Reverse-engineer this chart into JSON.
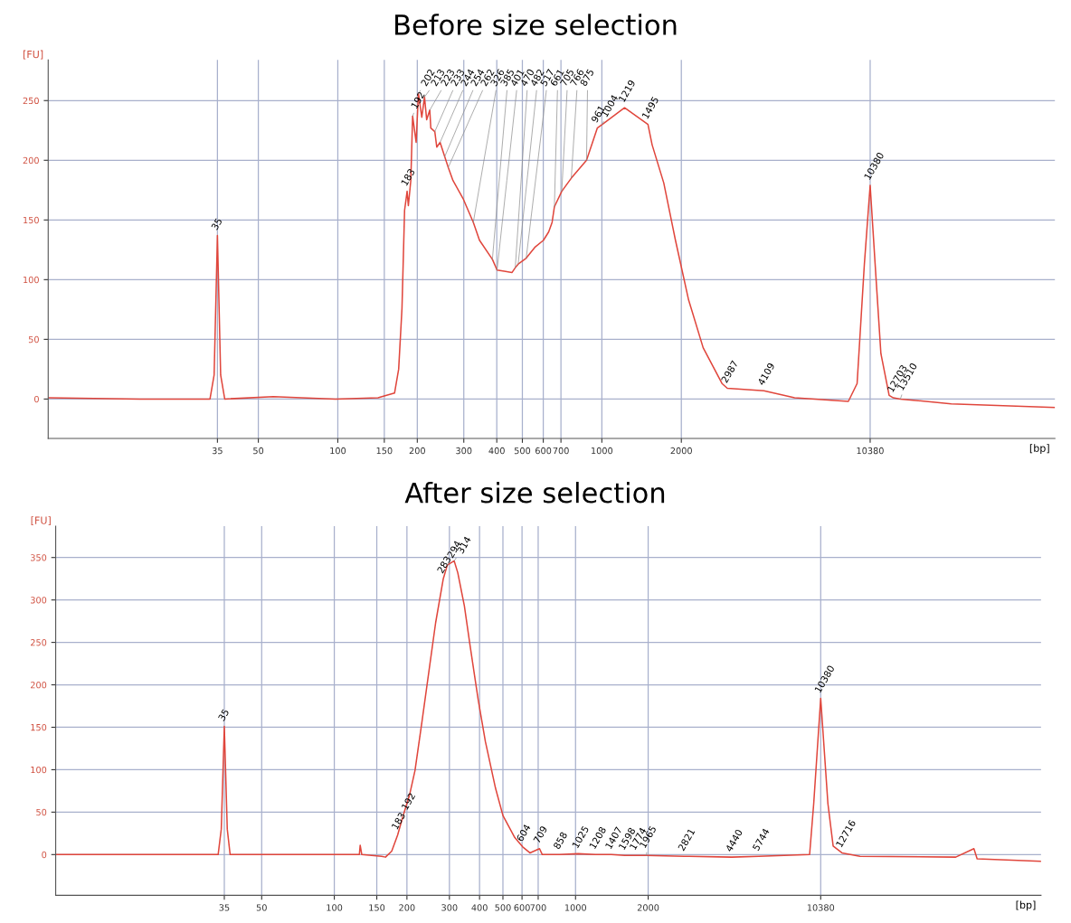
{
  "chart_data": [
    {
      "type": "line",
      "title": "Before size selection",
      "xlabel": "[bp]",
      "ylabel": "[FU]",
      "log": "x",
      "grid": true,
      "marker": "none",
      "line_style": "solid",
      "xlim": [
        8,
        52000
      ],
      "xticks": [
        35,
        50,
        100,
        150,
        200,
        300,
        400,
        500,
        600,
        700,
        1000,
        2000,
        10380
      ],
      "ylim": [
        -33,
        284
      ],
      "yticks": [
        0,
        50,
        100,
        150,
        200,
        250
      ],
      "series": [
        {
          "color": "#e0463c",
          "x": [
            8,
            17.8,
            32.8,
            34,
            35,
            36,
            37.3,
            57,
            98,
            142,
            152,
            164,
            170,
            175,
            179,
            183,
            185,
            189,
            192,
            198,
            202,
            208,
            213,
            217,
            223,
            225,
            233,
            237,
            244,
            254,
            262,
            273,
            298,
            326,
            344,
            385,
            401,
            427,
            457,
            470,
            482,
            517,
            557,
            601,
            629,
            648,
            661,
            705,
            766,
            875,
            961,
            1004,
            1219,
            1495,
            1550,
            1716,
            1900,
            2131,
            2419,
            2851,
            2987,
            4109,
            5371,
            8583,
            9263,
            9868,
            10380,
            10840,
            11400,
            12250,
            12703,
            13510,
            21050,
            51800
          ],
          "values": [
            1,
            0,
            0,
            20,
            137,
            20,
            0,
            2,
            0,
            1,
            3,
            5,
            25,
            76,
            158,
            174,
            162,
            183,
            237,
            215,
            256,
            236,
            253,
            234,
            242,
            227,
            224,
            211,
            215,
            203,
            194,
            183,
            168,
            148,
            133,
            117,
            108,
            107,
            106,
            110,
            113,
            118,
            127,
            133,
            140,
            148,
            161,
            174,
            185,
            200,
            227,
            230,
            244,
            230,
            213,
            181,
            133,
            83,
            43,
            13,
            9,
            7,
            1,
            -2,
            13,
            113,
            179,
            113,
            38,
            3,
            1,
            0,
            -4,
            -7
          ]
        }
      ],
      "annotations": [
        {
          "text": "35",
          "x": 35,
          "y": 137
        },
        {
          "text": "183",
          "x": 183,
          "y": 174
        },
        {
          "text": "192",
          "x": 192,
          "y": 237
        },
        {
          "text": "202",
          "x": 202,
          "y": 256
        },
        {
          "text": "213",
          "x": 213,
          "y": 253
        },
        {
          "text": "223",
          "x": 223,
          "y": 242
        },
        {
          "text": "233",
          "x": 233,
          "y": 224
        },
        {
          "text": "244",
          "x": 244,
          "y": 215
        },
        {
          "text": "254",
          "x": 254,
          "y": 203
        },
        {
          "text": "262",
          "x": 262,
          "y": 194
        },
        {
          "text": "326",
          "x": 326,
          "y": 148
        },
        {
          "text": "385",
          "x": 385,
          "y": 117
        },
        {
          "text": "401",
          "x": 401,
          "y": 108
        },
        {
          "text": "470",
          "x": 470,
          "y": 110
        },
        {
          "text": "482",
          "x": 482,
          "y": 113
        },
        {
          "text": "517",
          "x": 517,
          "y": 118
        },
        {
          "text": "661",
          "x": 661,
          "y": 161
        },
        {
          "text": "705",
          "x": 705,
          "y": 174
        },
        {
          "text": "766",
          "x": 766,
          "y": 185
        },
        {
          "text": "875",
          "x": 875,
          "y": 200
        },
        {
          "text": "961",
          "x": 961,
          "y": 227
        },
        {
          "text": "1004",
          "x": 1004,
          "y": 230
        },
        {
          "text": "1219",
          "x": 1219,
          "y": 244
        },
        {
          "text": "1495",
          "x": 1495,
          "y": 230
        },
        {
          "text": "2987",
          "x": 2987,
          "y": 9
        },
        {
          "text": "4109",
          "x": 4109,
          "y": 7
        },
        {
          "text": "10380",
          "x": 10380,
          "y": 179
        },
        {
          "text": "12703",
          "x": 12703,
          "y": 1
        },
        {
          "text": "13510",
          "x": 13510,
          "y": 0
        }
      ]
    },
    {
      "type": "line",
      "title": "After size selection",
      "xlabel": "[bp]",
      "ylabel": "[FU]",
      "log": "x",
      "grid": true,
      "marker": "none",
      "line_style": "solid",
      "xlim": [
        7,
        85000
      ],
      "xticks": [
        35,
        50,
        100,
        150,
        200,
        300,
        400,
        500,
        600,
        700,
        1000,
        2000,
        10380
      ],
      "ylim": [
        -48,
        387
      ],
      "yticks": [
        0,
        50,
        100,
        150,
        200,
        250,
        300,
        350
      ],
      "series": [
        {
          "color": "#e0463c",
          "x": [
            7,
            20.3,
            33,
            34,
            35,
            36,
            37,
            93,
            127,
            128,
            130,
            157,
            163,
            173,
            183,
            192,
            205,
            216,
            231,
            247,
            263,
            283,
            294,
            314,
            325,
            346,
            366,
            395,
            423,
            466,
            500,
            560,
            604,
            647,
            709,
            728,
            858,
            1025,
            1208,
            1407,
            1598,
            1774,
            1965,
            2821,
            4440,
            5744,
            9338,
            9710,
            10380,
            11120,
            11690,
            12716,
            15110,
            37670,
            44800,
            46200,
            84800
          ],
          "values": [
            0,
            0,
            0,
            30,
            151,
            30,
            0,
            0,
            0,
            11,
            0,
            -2,
            -3,
            4,
            23,
            44,
            70,
            99,
            157,
            217,
            273,
            325,
            341,
            346,
            332,
            293,
            245,
            182,
            133,
            78,
            46,
            20,
            9,
            2,
            7,
            0,
            0,
            1,
            0,
            0,
            -1,
            -1,
            -1,
            -2,
            -3,
            -2,
            0,
            60,
            184,
            60,
            10,
            2,
            -2,
            -3,
            7,
            -5,
            -8
          ]
        }
      ],
      "annotations": [
        {
          "text": "35",
          "x": 35,
          "y": 151
        },
        {
          "text": "183",
          "x": 183,
          "y": 23
        },
        {
          "text": "192",
          "x": 192,
          "y": 44
        },
        {
          "text": "283",
          "x": 283,
          "y": 325
        },
        {
          "text": "294",
          "x": 294,
          "y": 341
        },
        {
          "text": "314",
          "x": 314,
          "y": 346
        },
        {
          "text": "604",
          "x": 604,
          "y": 9
        },
        {
          "text": "709",
          "x": 709,
          "y": 7
        },
        {
          "text": "858",
          "x": 858,
          "y": 0
        },
        {
          "text": "1025",
          "x": 1025,
          "y": 1
        },
        {
          "text": "1208",
          "x": 1208,
          "y": 0
        },
        {
          "text": "1407",
          "x": 1407,
          "y": 0
        },
        {
          "text": "1598",
          "x": 1598,
          "y": -1
        },
        {
          "text": "1774",
          "x": 1774,
          "y": -1
        },
        {
          "text": "1965",
          "x": 1965,
          "y": -1
        },
        {
          "text": "2821",
          "x": 2821,
          "y": -2
        },
        {
          "text": "4440",
          "x": 4440,
          "y": -3
        },
        {
          "text": "5744",
          "x": 5744,
          "y": -2
        },
        {
          "text": "10380",
          "x": 10380,
          "y": 184
        },
        {
          "text": "12716",
          "x": 12716,
          "y": 2
        }
      ]
    }
  ]
}
